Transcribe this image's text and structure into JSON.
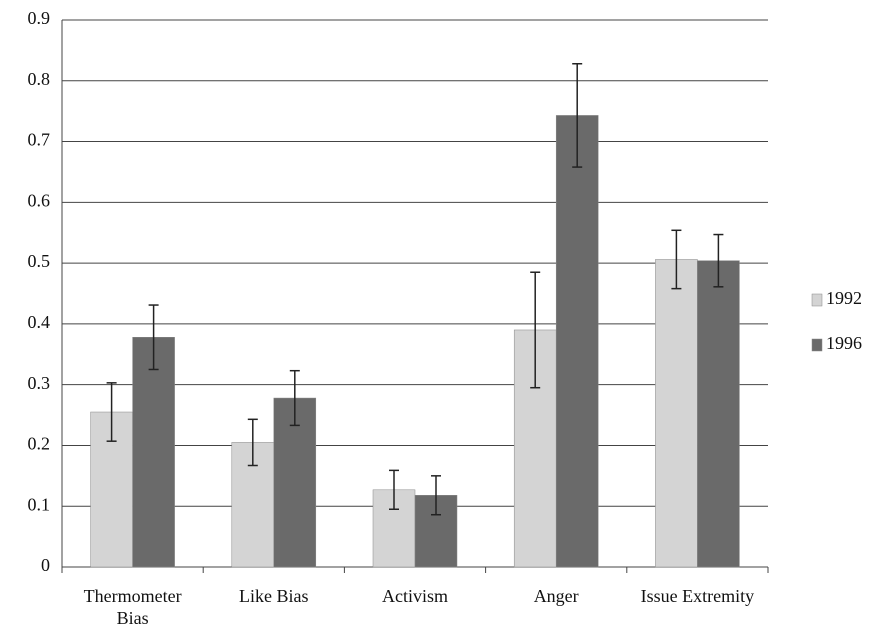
{
  "chart_data": {
    "type": "bar",
    "categories": [
      "Thermometer Bias",
      "Like Bias",
      "Activism",
      "Anger",
      "Issue Extremity"
    ],
    "series": [
      {
        "name": "1992",
        "color": "#d4d4d4",
        "values": [
          0.255,
          0.205,
          0.127,
          0.39,
          0.506
        ],
        "errors": [
          0.048,
          0.038,
          0.032,
          0.095,
          0.048
        ]
      },
      {
        "name": "1996",
        "color": "#6a6a6a",
        "values": [
          0.378,
          0.278,
          0.118,
          0.743,
          0.504
        ],
        "errors": [
          0.053,
          0.045,
          0.032,
          0.085,
          0.043
        ]
      }
    ],
    "ylim": [
      0,
      0.9
    ],
    "yticks": [
      0,
      0.1,
      0.2,
      0.3,
      0.4,
      0.5,
      0.6,
      0.7,
      0.8,
      0.9
    ],
    "grid": true,
    "legend": "right"
  }
}
